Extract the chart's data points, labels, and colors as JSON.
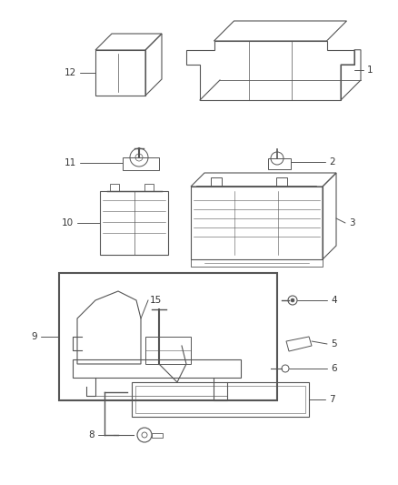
{
  "background_color": "#ffffff",
  "line_color": "#555555",
  "label_color": "#333333",
  "font_size": 7.5,
  "parts": [
    {
      "id": 1,
      "label": "1"
    },
    {
      "id": 2,
      "label": "2"
    },
    {
      "id": 3,
      "label": "3"
    },
    {
      "id": 4,
      "label": "4"
    },
    {
      "id": 5,
      "label": "5"
    },
    {
      "id": 6,
      "label": "6"
    },
    {
      "id": 7,
      "label": "7"
    },
    {
      "id": 8,
      "label": "8"
    },
    {
      "id": 9,
      "label": "9"
    },
    {
      "id": 10,
      "label": "10"
    },
    {
      "id": 11,
      "label": "11"
    },
    {
      "id": 12,
      "label": "12"
    },
    {
      "id": 15,
      "label": "15"
    }
  ]
}
